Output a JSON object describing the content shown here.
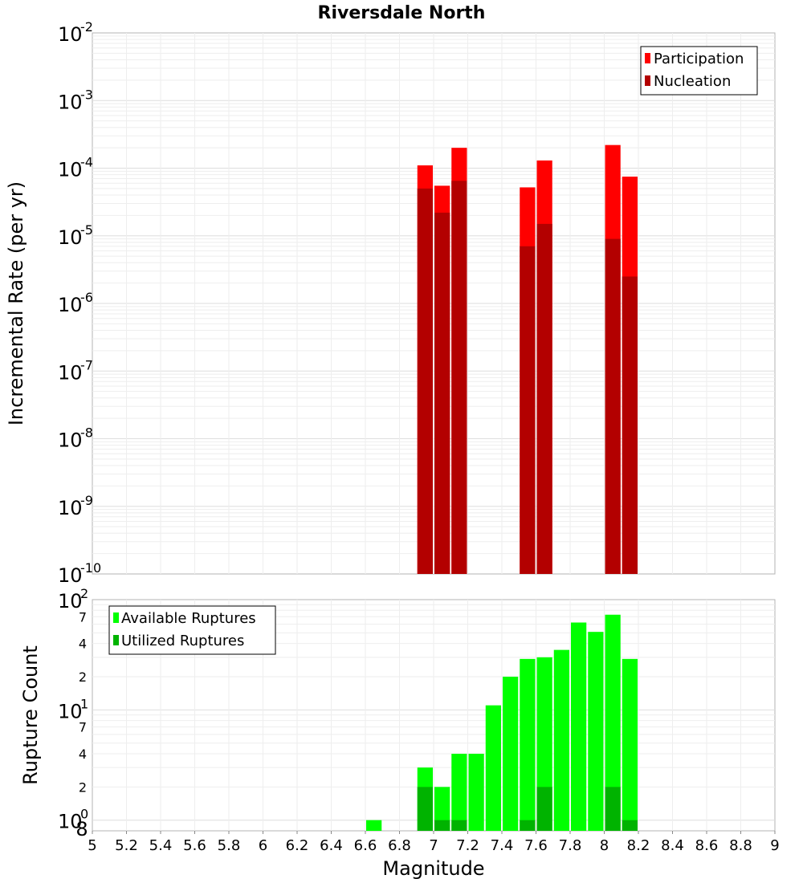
{
  "chart_data": [
    {
      "type": "bar",
      "title": "Riversdale North",
      "ylabel": "Incremental Rate (per yr)",
      "xlabel": "",
      "yscale": "log",
      "ylim": [
        1e-10,
        0.01
      ],
      "xlim": [
        5,
        9
      ],
      "yticks": [
        {
          "base": "10",
          "exp": "-10"
        },
        {
          "base": "10",
          "exp": "-9"
        },
        {
          "base": "10",
          "exp": "-8"
        },
        {
          "base": "10",
          "exp": "-7"
        },
        {
          "base": "10",
          "exp": "-6"
        },
        {
          "base": "10",
          "exp": "-5"
        },
        {
          "base": "10",
          "exp": "-4"
        },
        {
          "base": "10",
          "exp": "-3"
        },
        {
          "base": "10",
          "exp": "-2"
        }
      ],
      "legend_position": "top-right",
      "bar_width": 0.1,
      "series": [
        {
          "name": "Participation",
          "color": "#ff0000",
          "points": [
            [
              6.95,
              0.00011
            ],
            [
              7.05,
              5.5e-05
            ],
            [
              7.15,
              0.0002
            ],
            [
              7.55,
              5.2e-05
            ],
            [
              7.65,
              0.00013
            ],
            [
              8.05,
              0.00022
            ],
            [
              8.15,
              7.5e-05
            ]
          ]
        },
        {
          "name": "Nucleation",
          "color": "#b30000",
          "points": [
            [
              6.95,
              5e-05
            ],
            [
              7.05,
              2.2e-05
            ],
            [
              7.15,
              6.5e-05
            ],
            [
              7.55,
              7e-06
            ],
            [
              7.65,
              1.5e-05
            ],
            [
              8.05,
              9e-06
            ],
            [
              8.15,
              2.5e-06
            ]
          ]
        }
      ]
    },
    {
      "type": "bar",
      "title": "",
      "ylabel": "Rupture Count",
      "xlabel": "Magnitude",
      "yscale": "log",
      "ylim": [
        0.8,
        100
      ],
      "xlim": [
        5,
        9
      ],
      "xticks": [
        "5",
        "5.2",
        "5.4",
        "5.6",
        "5.8",
        "6",
        "6.2",
        "6.4",
        "6.6",
        "6.8",
        "7",
        "7.2",
        "7.4",
        "7.6",
        "7.8",
        "8",
        "8.2",
        "8.4",
        "8.6",
        "8.8",
        "9"
      ],
      "ytick_labels": {
        "major": [
          {
            "base": "10",
            "exp": "0"
          },
          {
            "base": "10",
            "exp": "1"
          },
          {
            "base": "10",
            "exp": "2"
          }
        ],
        "minor": [
          {
            "value": 0.8,
            "label": "8"
          },
          {
            "value": 2,
            "label": "2"
          },
          {
            "value": 4,
            "label": "4"
          },
          {
            "value": 7,
            "label": "7"
          },
          {
            "value": 20,
            "label": "2"
          },
          {
            "value": 40,
            "label": "4"
          },
          {
            "value": 70,
            "label": "7"
          }
        ]
      },
      "legend_position": "top-left",
      "bar_width": 0.1,
      "series": [
        {
          "name": "Available Ruptures",
          "color": "#00ff00",
          "points": [
            [
              6.65,
              1
            ],
            [
              6.95,
              3
            ],
            [
              7.05,
              2
            ],
            [
              7.15,
              4
            ],
            [
              7.25,
              4
            ],
            [
              7.35,
              11
            ],
            [
              7.45,
              20
            ],
            [
              7.55,
              29
            ],
            [
              7.65,
              30
            ],
            [
              7.75,
              35
            ],
            [
              7.85,
              62
            ],
            [
              7.95,
              51
            ],
            [
              8.05,
              73
            ],
            [
              8.15,
              29
            ]
          ]
        },
        {
          "name": "Utilized Ruptures",
          "color": "#00b300",
          "points": [
            [
              6.95,
              2
            ],
            [
              7.05,
              1
            ],
            [
              7.15,
              1
            ],
            [
              7.55,
              1
            ],
            [
              7.65,
              2
            ],
            [
              8.05,
              2
            ],
            [
              8.15,
              1
            ]
          ]
        }
      ]
    }
  ]
}
